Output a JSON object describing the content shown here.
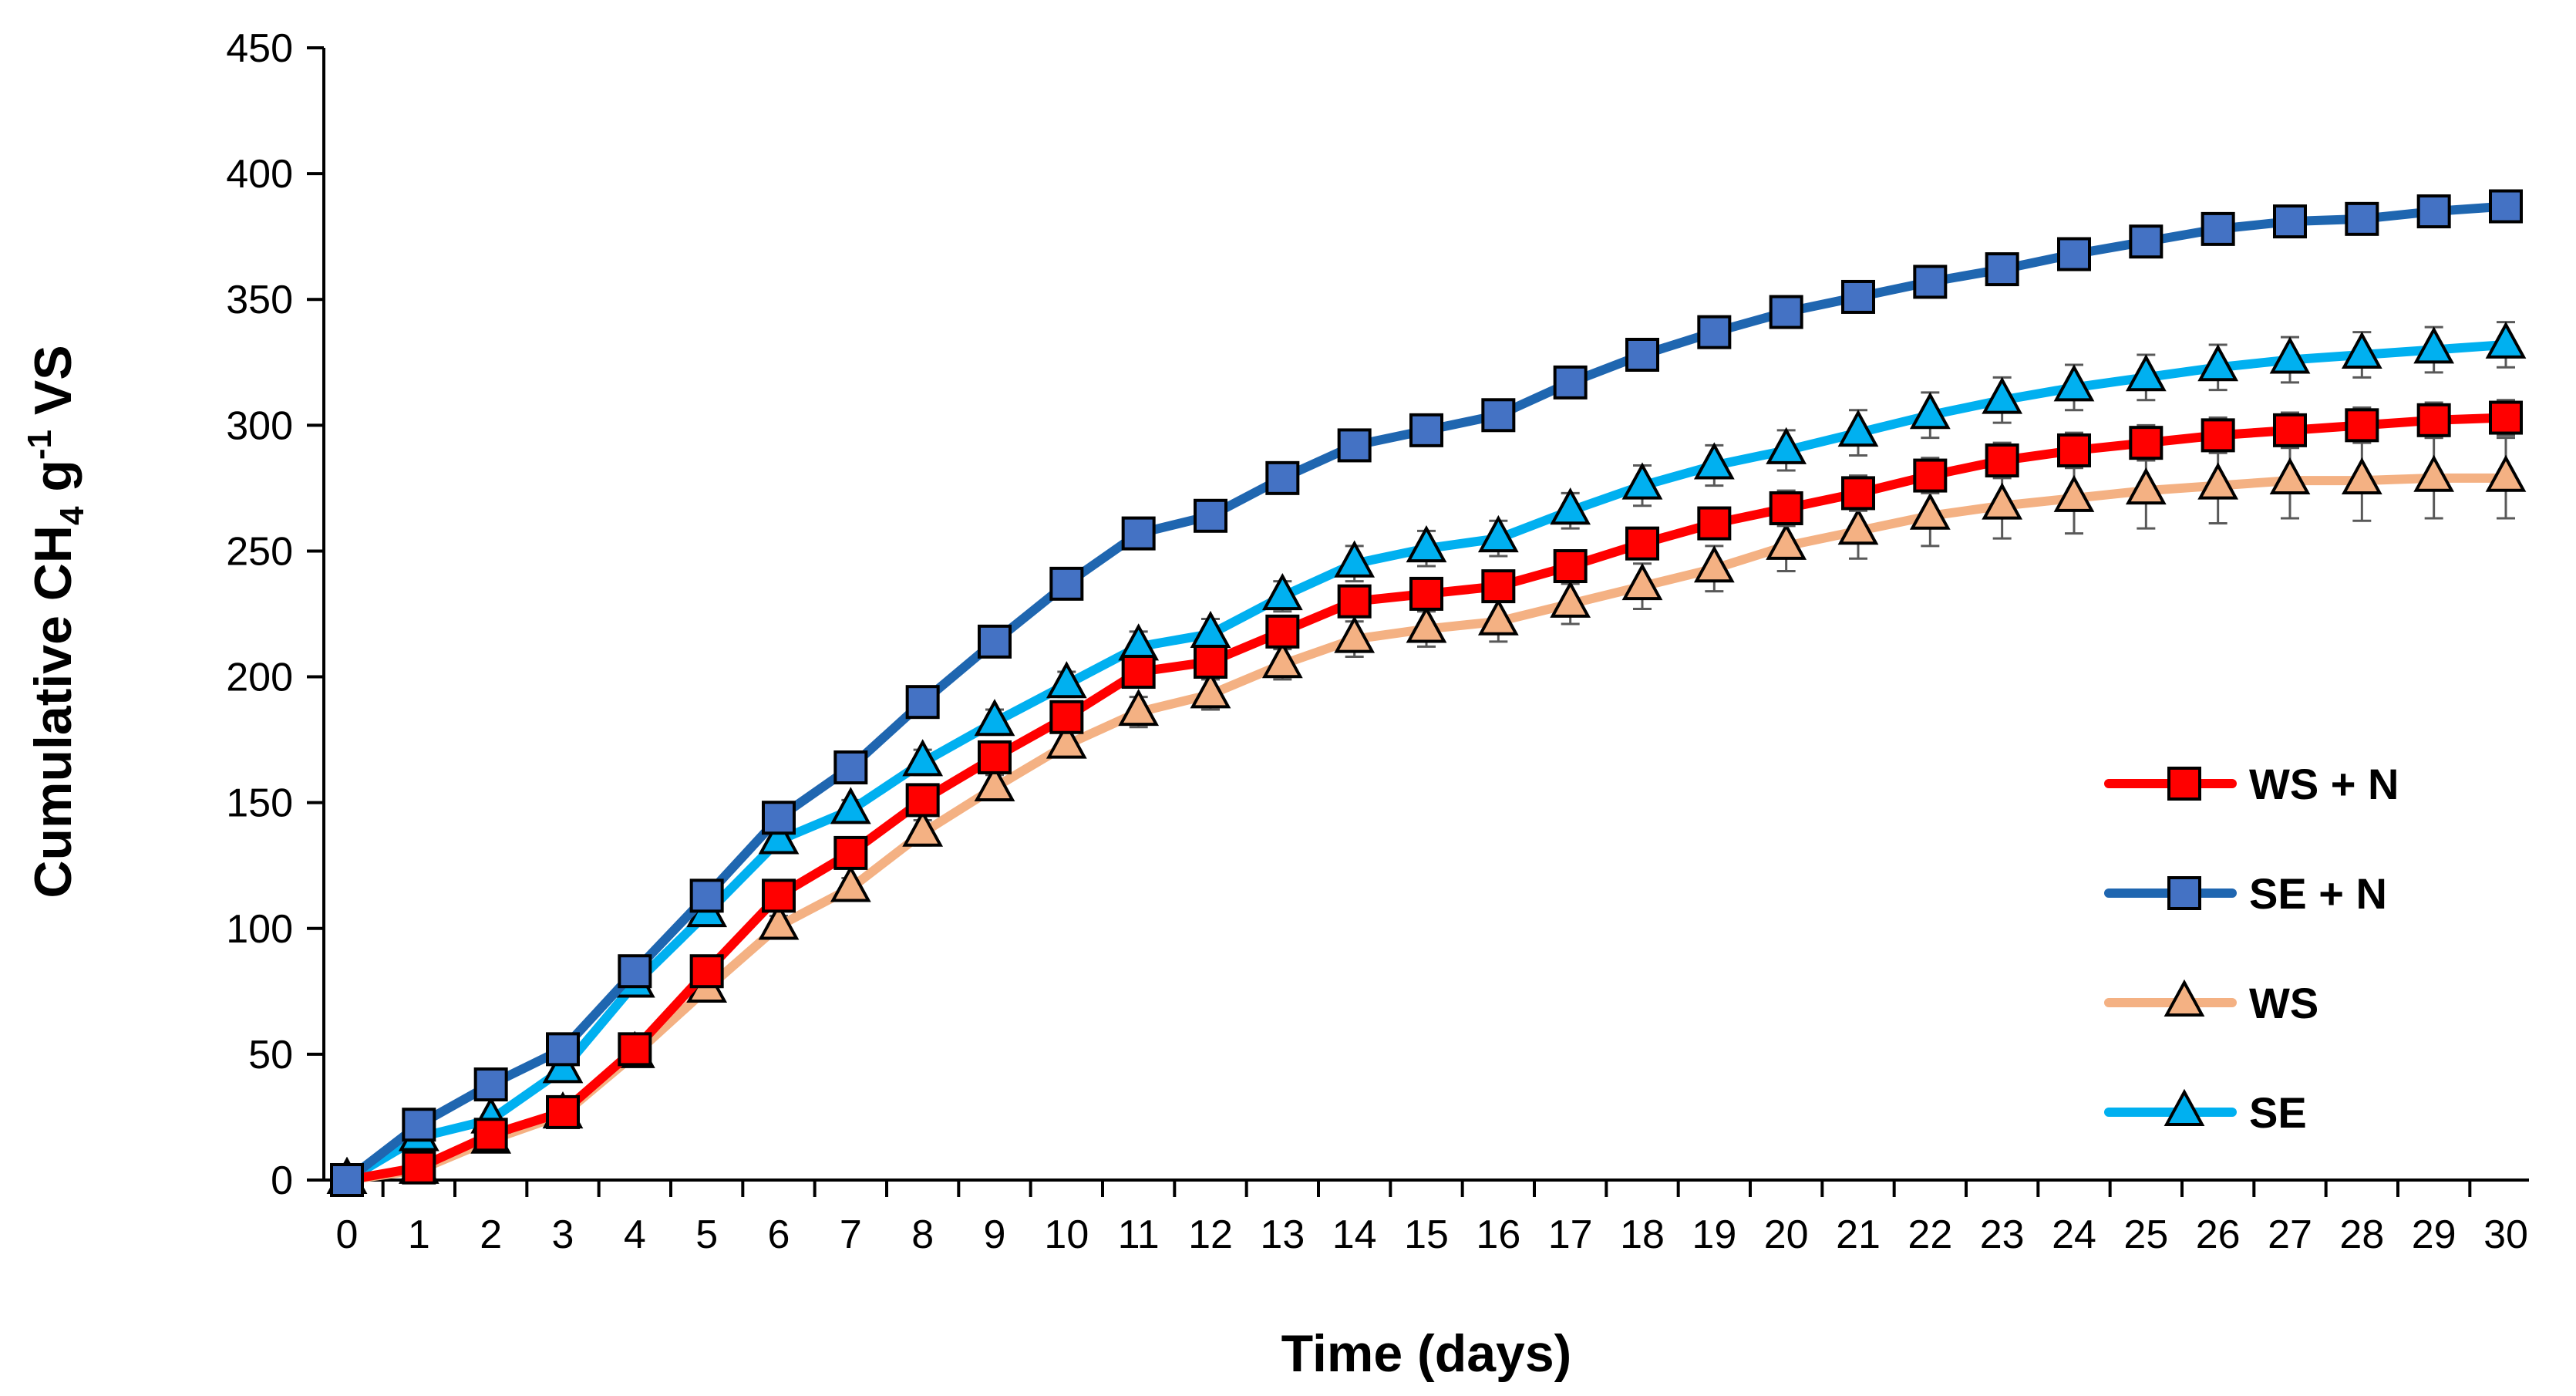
{
  "chart_data": {
    "type": "line",
    "title": "",
    "xlabel": "Time (days)",
    "ylabel": {
      "prefix": "Cumulative CH",
      "subscript": "4",
      "middle": "  g",
      "superscript": "-1",
      "suffix": " VS"
    },
    "xlim": [
      0,
      30
    ],
    "ylim": [
      0,
      450
    ],
    "x": [
      0,
      1,
      2,
      3,
      4,
      5,
      6,
      7,
      8,
      9,
      10,
      11,
      12,
      13,
      14,
      15,
      16,
      17,
      18,
      19,
      20,
      21,
      22,
      23,
      24,
      25,
      26,
      27,
      28,
      29,
      30
    ],
    "x_tick_labels": [
      "0",
      "1",
      "2",
      "3",
      "4",
      "5",
      "6",
      "7",
      "8",
      "9",
      "10",
      "11",
      "12",
      "13",
      "14",
      "15",
      "16",
      "17",
      "18",
      "19",
      "20",
      "21",
      "22",
      "23",
      "24",
      "25",
      "26",
      "27",
      "28",
      "29",
      "30"
    ],
    "y_ticks": [
      0,
      50,
      100,
      150,
      200,
      250,
      300,
      350,
      400,
      450
    ],
    "y_tick_labels": [
      "0",
      "50",
      "100",
      "150",
      "200",
      "250",
      "300",
      "350",
      "400",
      "450"
    ],
    "grid": false,
    "legend_position": "right",
    "series": [
      {
        "name": "WS + N",
        "marker": "square",
        "color": "#FF0000",
        "line_color": "#FF0000",
        "values": [
          0,
          5,
          18,
          27,
          52,
          83,
          113,
          130,
          151,
          168,
          184,
          202,
          206,
          218,
          230,
          233,
          236,
          244,
          253,
          261,
          267,
          273,
          280,
          286,
          290,
          293,
          296,
          298,
          300,
          302,
          303
        ],
        "errors": [
          0,
          2,
          2,
          2,
          3,
          3,
          3,
          4,
          4,
          4,
          5,
          5,
          5,
          5,
          5,
          6,
          6,
          6,
          6,
          6,
          7,
          7,
          7,
          7,
          7,
          7,
          7,
          7,
          7,
          7,
          7
        ]
      },
      {
        "name": "SE + N",
        "marker": "square",
        "color": "#4472C4",
        "line_color": "#1F66B0",
        "values": [
          0,
          22,
          38,
          52,
          83,
          113,
          144,
          164,
          190,
          214,
          237,
          257,
          264,
          279,
          292,
          298,
          304,
          317,
          328,
          337,
          345,
          351,
          357,
          362,
          368,
          373,
          378,
          381,
          382,
          385,
          387
        ],
        "errors": [
          0,
          2,
          2,
          2,
          3,
          3,
          3,
          3,
          3,
          3,
          3,
          3,
          3,
          3,
          4,
          4,
          4,
          4,
          4,
          4,
          4,
          4,
          4,
          4,
          4,
          4,
          4,
          4,
          4,
          4,
          4
        ]
      },
      {
        "name": "WS",
        "marker": "triangle",
        "color": "#F4B183",
        "line_color": "#F4B183",
        "values": [
          0,
          4,
          16,
          26,
          50,
          76,
          101,
          116,
          138,
          156,
          173,
          186,
          193,
          205,
          215,
          219,
          222,
          229,
          236,
          243,
          252,
          258,
          264,
          268,
          271,
          274,
          276,
          278,
          278,
          279,
          279
        ],
        "errors": [
          0,
          2,
          2,
          3,
          3,
          3,
          4,
          4,
          5,
          5,
          5,
          6,
          6,
          6,
          7,
          7,
          8,
          8,
          9,
          9,
          10,
          11,
          12,
          13,
          14,
          15,
          15,
          15,
          16,
          16,
          16
        ]
      },
      {
        "name": "SE",
        "marker": "triangle",
        "color": "#00B0F0",
        "line_color": "#00B0F0",
        "values": [
          0,
          17,
          24,
          44,
          78,
          106,
          135,
          147,
          166,
          182,
          197,
          212,
          217,
          232,
          245,
          251,
          255,
          266,
          276,
          284,
          290,
          297,
          304,
          310,
          315,
          319,
          323,
          326,
          328,
          330,
          332
        ],
        "errors": [
          0,
          2,
          2,
          3,
          3,
          4,
          4,
          4,
          5,
          5,
          5,
          6,
          6,
          6,
          7,
          7,
          7,
          7,
          8,
          8,
          8,
          9,
          9,
          9,
          9,
          9,
          9,
          9,
          9,
          9,
          9
        ]
      }
    ]
  }
}
